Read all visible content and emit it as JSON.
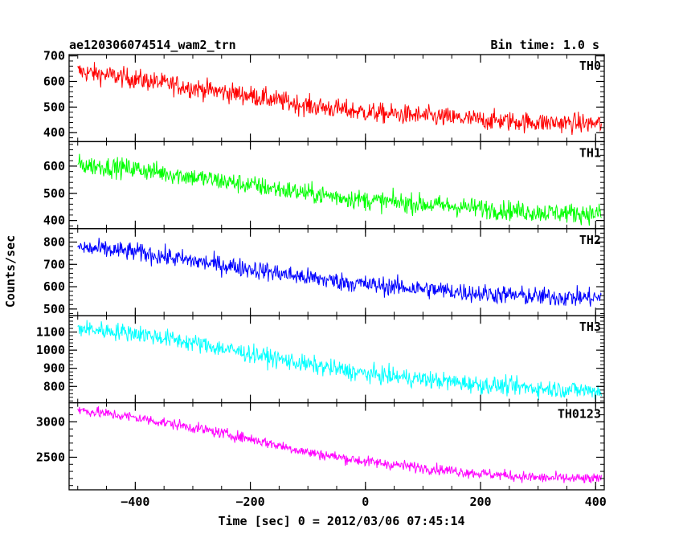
{
  "header": {
    "title": "ae120306074514_wam2_trn",
    "bin_time": "Bin time: 1.0 s"
  },
  "chart_data": {
    "type": "line",
    "xlabel": "Time [sec] 0 = 2012/03/06 07:45:14",
    "ylabel": "Counts/sec",
    "xlim": [
      -515,
      415
    ],
    "x_ticks": [
      -400,
      -200,
      0,
      200,
      400
    ],
    "x_range": [
      -500,
      410
    ],
    "x_step": 1.0,
    "grid": false,
    "panels": [
      {
        "name": "TH0",
        "color": "#ff0000",
        "ylim": [
          365,
          705
        ],
        "y_ticks": [
          400,
          500,
          600,
          700
        ],
        "trend": [
          [
            -500,
            640
          ],
          [
            -400,
            610
          ],
          [
            -300,
            575
          ],
          [
            -200,
            545
          ],
          [
            -100,
            505
          ],
          [
            0,
            480
          ],
          [
            100,
            465
          ],
          [
            200,
            450
          ],
          [
            300,
            440
          ],
          [
            410,
            435
          ]
        ],
        "noise": 28
      },
      {
        "name": "TH1",
        "color": "#00ff00",
        "ylim": [
          370,
          690
        ],
        "y_ticks": [
          400,
          500,
          600
        ],
        "trend": [
          [
            -500,
            605
          ],
          [
            -400,
            590
          ],
          [
            -300,
            560
          ],
          [
            -200,
            530
          ],
          [
            -100,
            500
          ],
          [
            0,
            475
          ],
          [
            100,
            460
          ],
          [
            200,
            445
          ],
          [
            300,
            430
          ],
          [
            410,
            425
          ]
        ],
        "noise": 26
      },
      {
        "name": "TH2",
        "color": "#0000ff",
        "ylim": [
          470,
          860
        ],
        "y_ticks": [
          500,
          600,
          700,
          800
        ],
        "trend": [
          [
            -500,
            775
          ],
          [
            -400,
            755
          ],
          [
            -300,
            715
          ],
          [
            -200,
            680
          ],
          [
            -100,
            640
          ],
          [
            0,
            610
          ],
          [
            100,
            590
          ],
          [
            200,
            570
          ],
          [
            300,
            555
          ],
          [
            410,
            550
          ]
        ],
        "noise": 30
      },
      {
        "name": "TH3",
        "color": "#00ffff",
        "ylim": [
          710,
          1190
        ],
        "y_ticks": [
          800,
          900,
          1000,
          1100
        ],
        "trend": [
          [
            -500,
            1120
          ],
          [
            -400,
            1095
          ],
          [
            -300,
            1040
          ],
          [
            -200,
            980
          ],
          [
            -100,
            920
          ],
          [
            0,
            870
          ],
          [
            100,
            840
          ],
          [
            200,
            810
          ],
          [
            300,
            790
          ],
          [
            410,
            775
          ]
        ],
        "noise": 35
      },
      {
        "name": "TH0123",
        "color": "#ff00ff",
        "ylim": [
          2040,
          3270
        ],
        "y_ticks": [
          2500,
          3000
        ],
        "trend": [
          [
            -500,
            3170
          ],
          [
            -400,
            3060
          ],
          [
            -300,
            2920
          ],
          [
            -200,
            2760
          ],
          [
            -100,
            2570
          ],
          [
            0,
            2440
          ],
          [
            100,
            2350
          ],
          [
            200,
            2270
          ],
          [
            300,
            2210
          ],
          [
            410,
            2190
          ]
        ],
        "noise": 55
      }
    ]
  }
}
